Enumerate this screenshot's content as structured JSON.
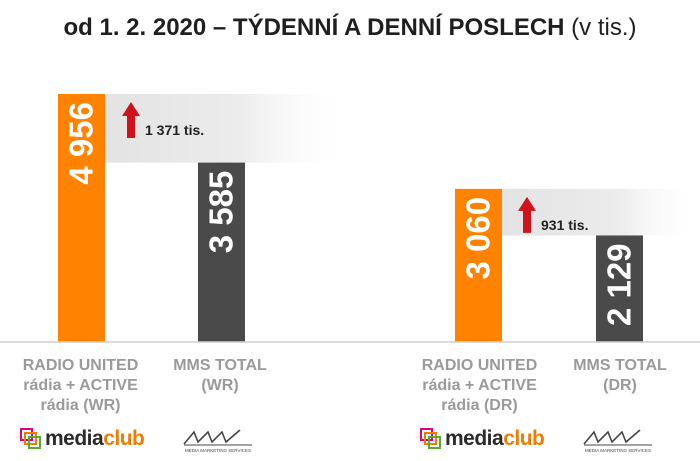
{
  "title": {
    "main": "od 1. 2. 2020 – TÝDENNÍ A DENNÍ POSLECH",
    "unit": "(v tis.)"
  },
  "colors": {
    "radio_united": "#ff8200",
    "mms_total": "#4a4a4a",
    "arrow": "#d0121b",
    "label_gray": "#9a9a9a",
    "band_gray": "#e9e9e9"
  },
  "chart_data": {
    "type": "bar",
    "title": "od 1. 2. 2020 – TÝDENNÍ A DENNÍ POSLECH (v tis.)",
    "groups": [
      {
        "bars": [
          {
            "category": "RADIO UNITED rádia + ACTIVE rádia (WR)",
            "value": 4956,
            "label": "4 956",
            "color": "#ff8200"
          },
          {
            "category": "MMS TOTAL (WR)",
            "value": 3585,
            "label": "3 585",
            "color": "#4a4a4a"
          }
        ],
        "difference": {
          "value": 1371,
          "label": "1 371 tis."
        }
      },
      {
        "bars": [
          {
            "category": "RADIO UNITED rádia + ACTIVE rádia (DR)",
            "value": 3060,
            "label": "3 060",
            "color": "#ff8200"
          },
          {
            "category": "MMS TOTAL (DR)",
            "value": 2129,
            "label": "2 129",
            "color": "#4a4a4a"
          }
        ],
        "difference": {
          "value": 931,
          "label": "931 tis."
        }
      }
    ]
  },
  "labels": {
    "g1_ru": [
      "RADIO UNITED",
      "rádia + ACTIVE",
      "rádia (WR)"
    ],
    "g1_mms": [
      "MMS TOTAL",
      "(WR)"
    ],
    "g2_ru": [
      "RADIO UNITED",
      "rádia + ACTIVE",
      "rádia (DR)"
    ],
    "g2_mms": [
      "MMS TOTAL",
      "(DR)"
    ]
  },
  "logos": {
    "mediaclub_a": "media",
    "mediaclub_b": "club",
    "mms_mark": "mms",
    "mms_sub": "MEDIA MARKETING SERVICES"
  }
}
